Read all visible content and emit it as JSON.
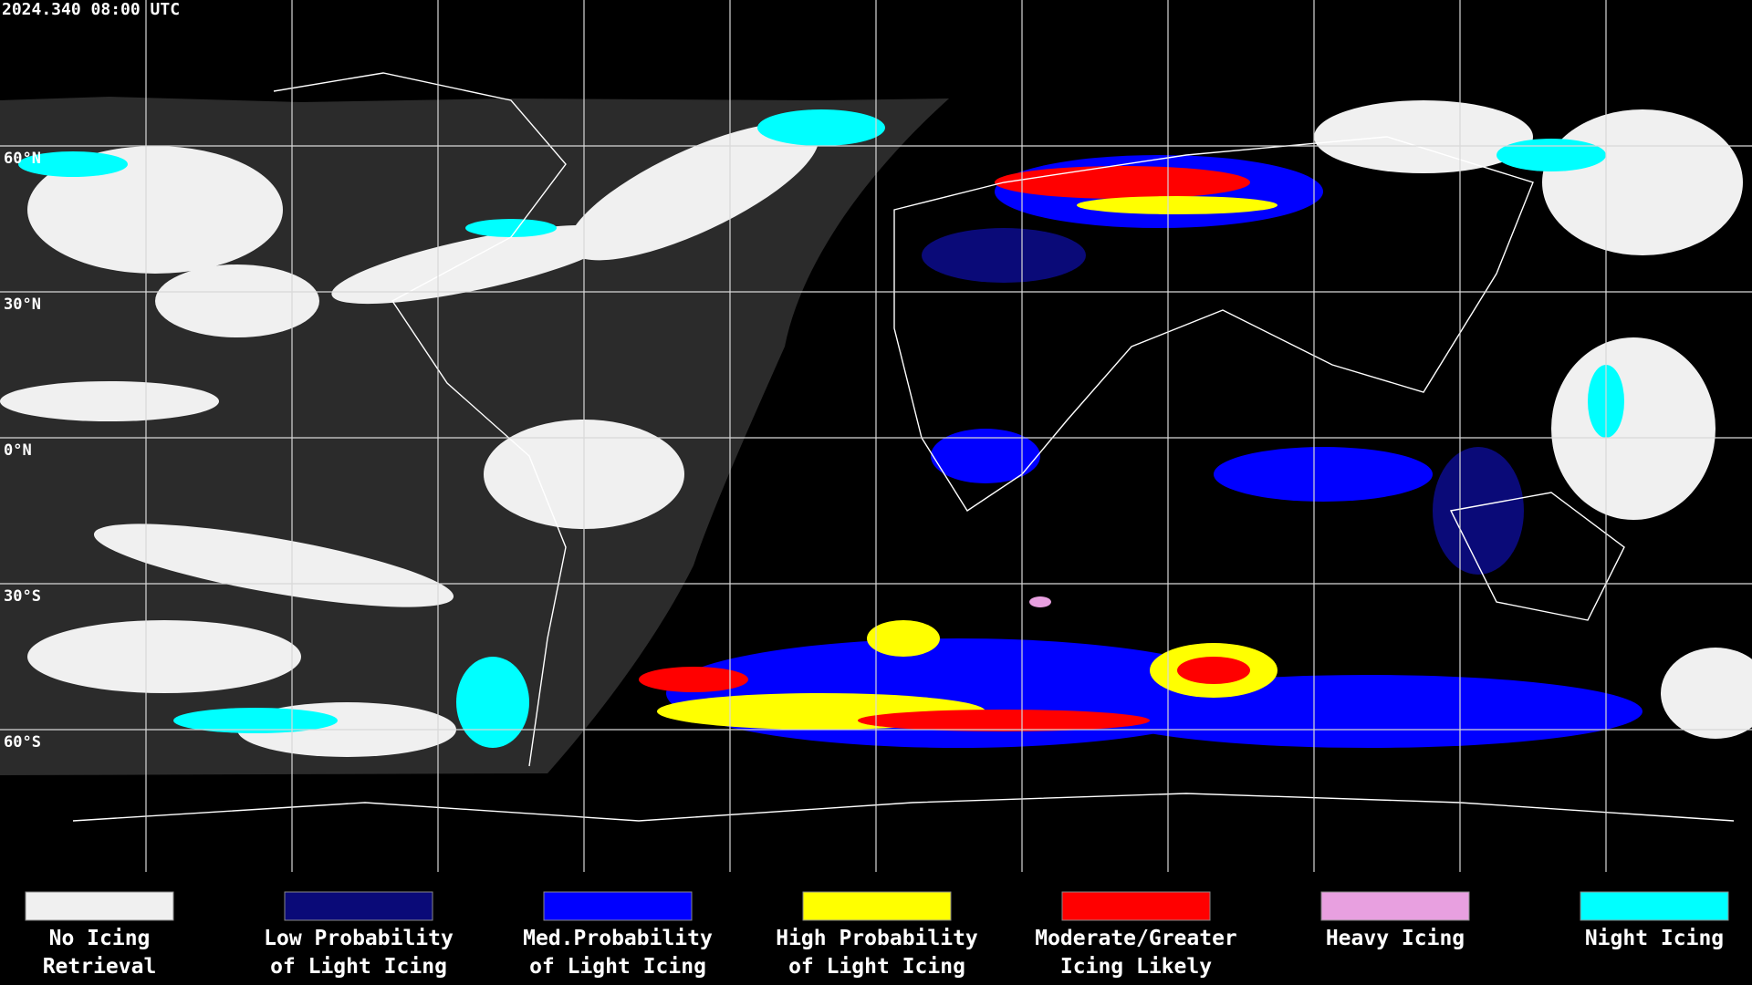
{
  "header": {
    "timestamp": "2024.340 08:00 UTC"
  },
  "map": {
    "latitude_labels": [
      "60°N",
      "30°N",
      "0°N",
      "30°S",
      "60°S"
    ]
  },
  "legend": {
    "items": [
      {
        "lines": [
          "No Icing",
          "Retrieval"
        ],
        "color": "#f0f0f0"
      },
      {
        "lines": [
          "Low Probability",
          "of Light Icing"
        ],
        "color": "#0a0a78"
      },
      {
        "lines": [
          "Med.Probability",
          "of Light Icing"
        ],
        "color": "#0000ff"
      },
      {
        "lines": [
          "High Probability",
          "of Light Icing"
        ],
        "color": "#ffff00"
      },
      {
        "lines": [
          "Moderate/Greater",
          "Icing Likely"
        ],
        "color": "#ff0000"
      },
      {
        "lines": [
          "Heavy Icing"
        ],
        "color": "#e8a0e0"
      },
      {
        "lines": [
          "Night Icing"
        ],
        "color": "#00ffff"
      }
    ]
  }
}
